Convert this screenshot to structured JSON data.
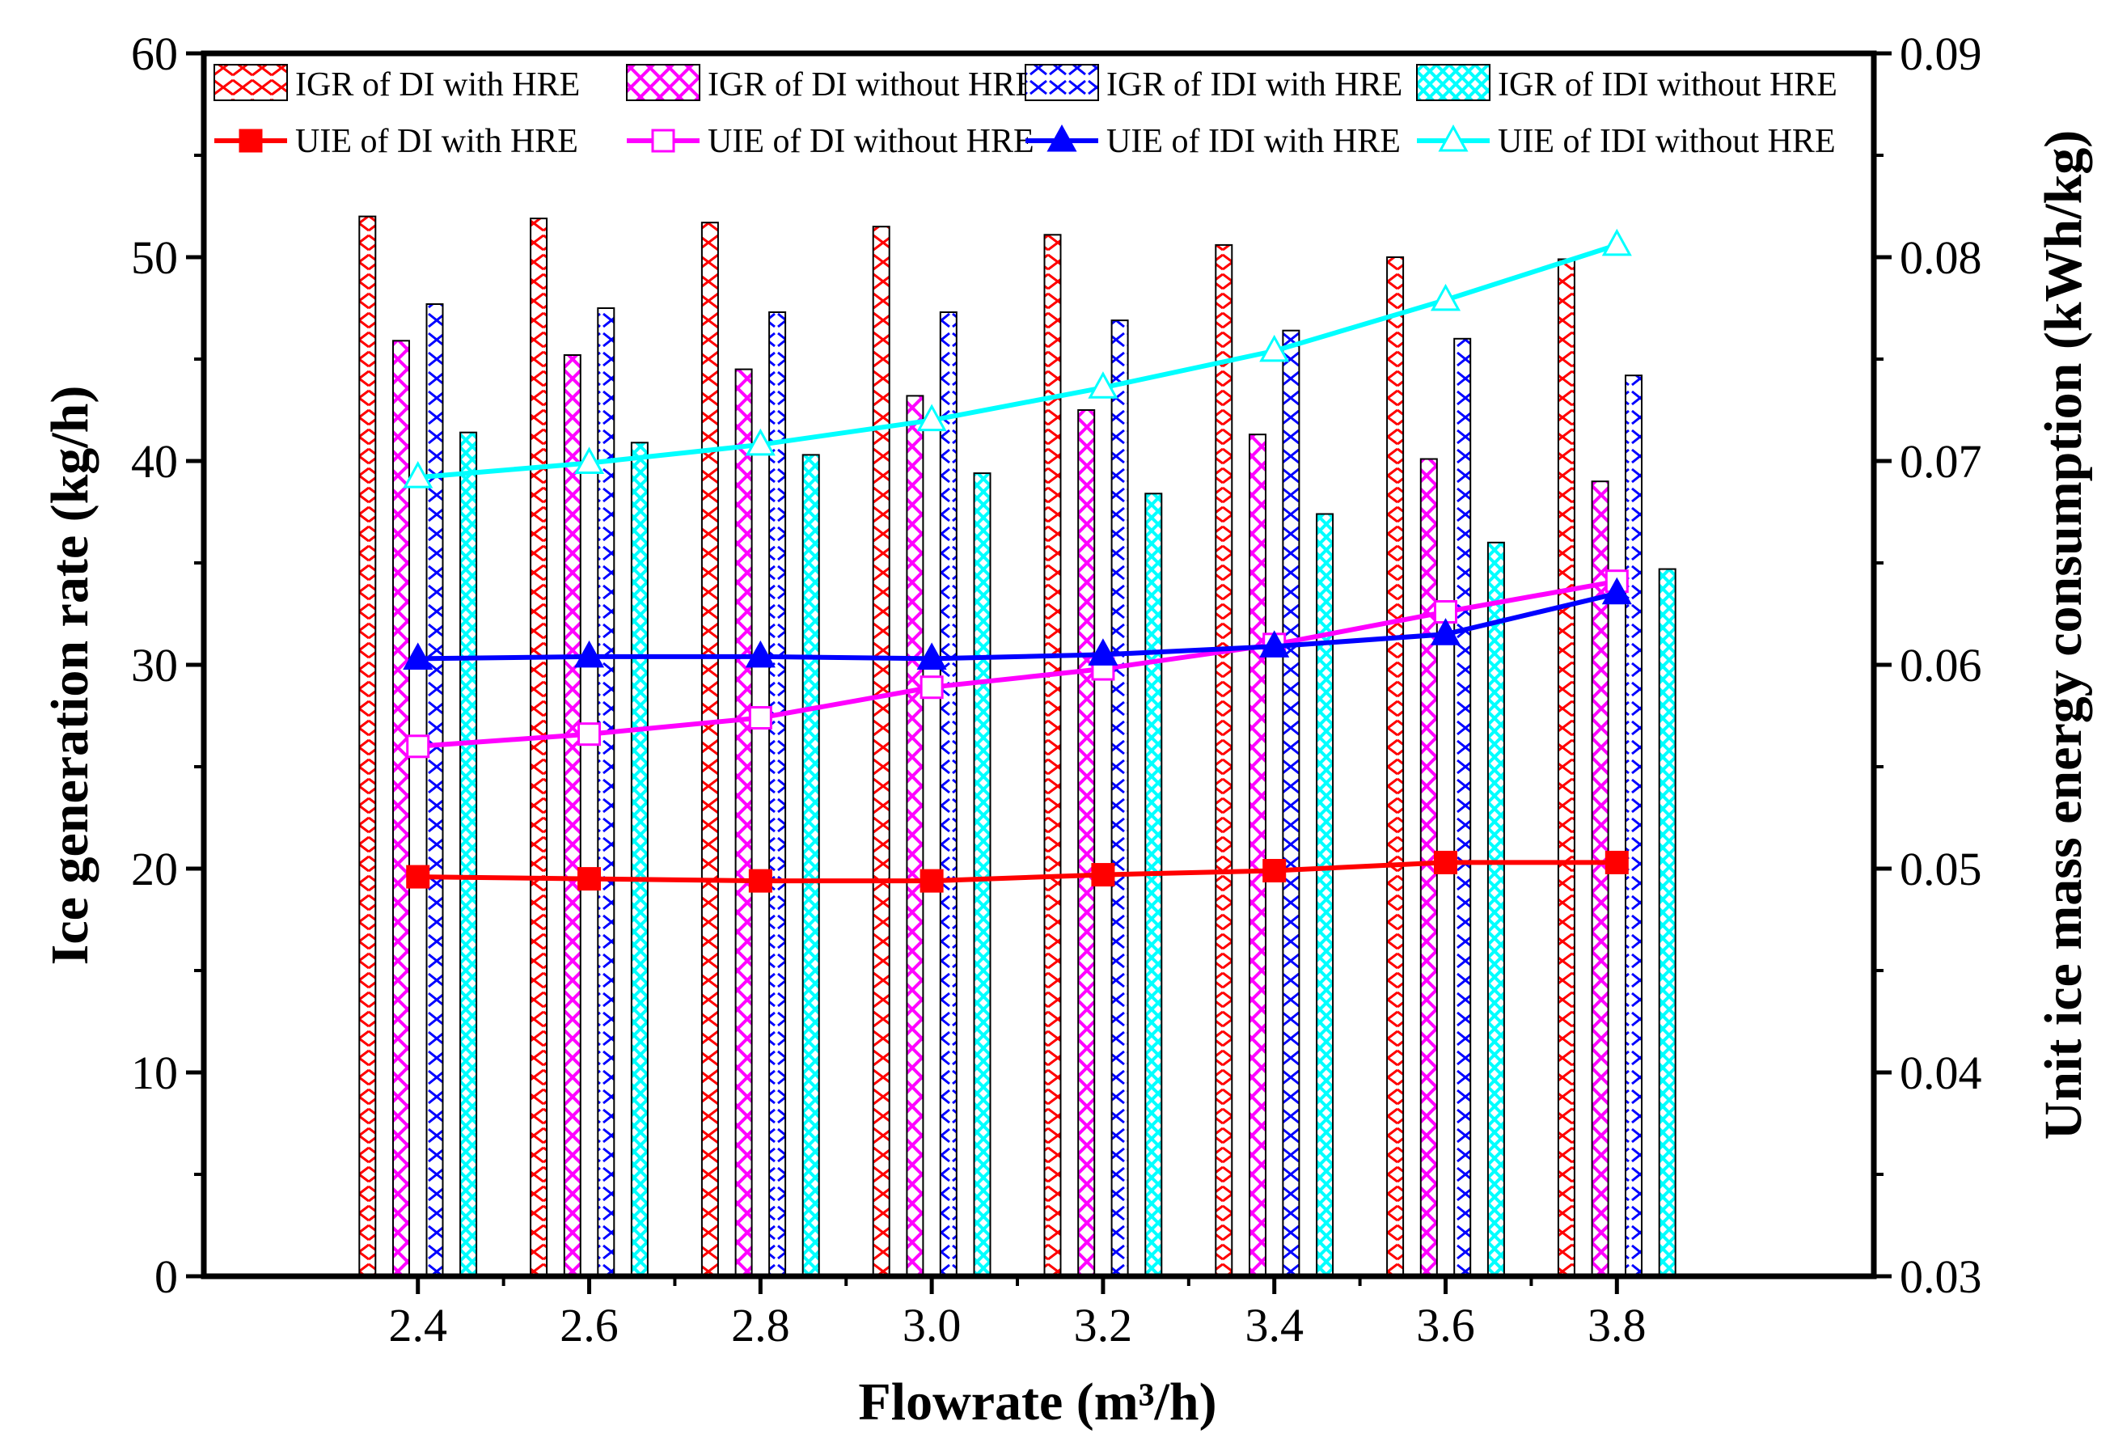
{
  "colors": {
    "di_with_hre": "#ff0000",
    "di_without_hre": "#ff00ff",
    "idi_with_hre": "#0000ff",
    "idi_without_hre": "#00ffff",
    "axis": "#000000"
  },
  "chart_data": {
    "type": "bar+line",
    "xlabel": "Flowrate (m³/h)",
    "ylabel": "Ice generation rate (kg/h)",
    "y2label": "Unit ice mass energy consumption (kWh/kg)",
    "categories": [
      "2.4",
      "2.6",
      "2.8",
      "3.0",
      "3.2",
      "3.4",
      "3.6",
      "3.8"
    ],
    "x": [
      2.4,
      2.6,
      2.8,
      3.0,
      3.2,
      3.4,
      3.6,
      3.8
    ],
    "xlim": [
      2.15,
      4.1
    ],
    "ylim": [
      0,
      60
    ],
    "y2lim": [
      0.03,
      0.09
    ],
    "yticks": [
      "0",
      "10",
      "20",
      "30",
      "40",
      "50",
      "60"
    ],
    "y2ticks": [
      "0.03",
      "0.04",
      "0.05",
      "0.06",
      "0.07",
      "0.08",
      "0.09"
    ],
    "legend_position": "top",
    "bar_series": [
      {
        "name": "IGR of DI with HRE",
        "color_key": "di_with_hre",
        "values": [
          52.0,
          51.9,
          51.7,
          51.5,
          51.1,
          50.6,
          50.0,
          49.9
        ]
      },
      {
        "name": "IGR of DI without HRE",
        "color_key": "di_without_hre",
        "values": [
          45.9,
          45.2,
          44.5,
          43.2,
          42.5,
          41.3,
          40.1,
          39.0
        ]
      },
      {
        "name": "IGR of IDI with HRE",
        "color_key": "idi_with_hre",
        "values": [
          47.7,
          47.5,
          47.3,
          47.3,
          46.9,
          46.4,
          46.0,
          44.2
        ]
      },
      {
        "name": "IGR of IDI without HRE",
        "color_key": "idi_without_hre",
        "values": [
          41.4,
          40.9,
          40.3,
          39.4,
          38.4,
          37.4,
          36.0,
          34.7
        ]
      }
    ],
    "line_series": [
      {
        "name": "UIE of DI with HRE",
        "color_key": "di_with_hre",
        "marker": "filled-square",
        "values": [
          0.0496,
          0.0495,
          0.0494,
          0.0494,
          0.0497,
          0.0499,
          0.0503,
          0.0503
        ]
      },
      {
        "name": "UIE of DI without HRE",
        "color_key": "di_without_hre",
        "marker": "open-square",
        "values": [
          0.056,
          0.0566,
          0.0574,
          0.0589,
          0.0598,
          0.061,
          0.0626,
          0.0641
        ]
      },
      {
        "name": "UIE of IDI with HRE",
        "color_key": "idi_with_hre",
        "marker": "filled-triangle",
        "values": [
          0.0603,
          0.0604,
          0.0604,
          0.0603,
          0.0605,
          0.0609,
          0.0615,
          0.0635
        ]
      },
      {
        "name": "UIE of IDI without HRE",
        "color_key": "idi_without_hre",
        "marker": "open-triangle",
        "values": [
          0.0692,
          0.0699,
          0.0708,
          0.072,
          0.0736,
          0.0754,
          0.0779,
          0.0806
        ]
      }
    ]
  }
}
